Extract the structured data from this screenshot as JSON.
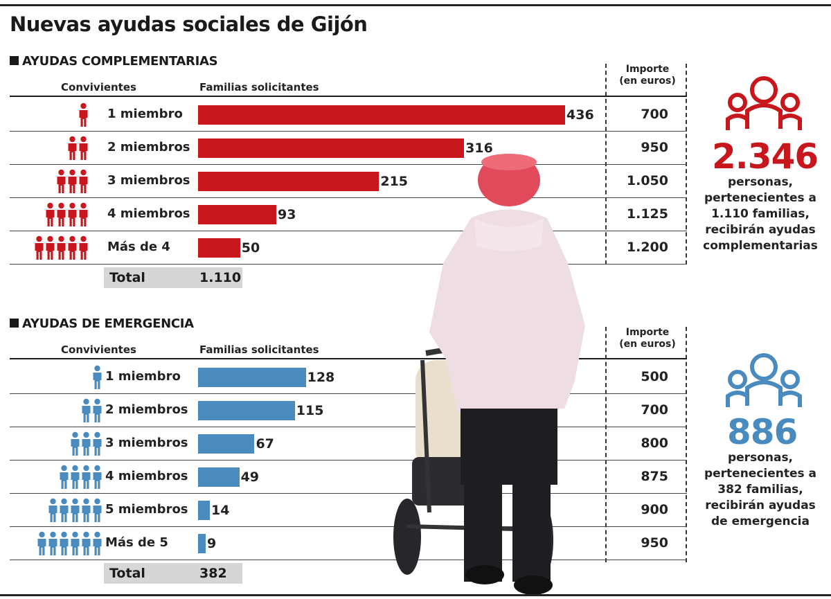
{
  "title": "Nuevas ayudas sociales de Gijón",
  "colors": {
    "red": "#c8161d",
    "blue": "#4a8bbf"
  },
  "chart_data": [
    {
      "type": "bar",
      "title": "AYUDAS COMPLEMENTARIAS",
      "xlabel": "Convivientes",
      "ylabel": "Familias solicitantes",
      "amount_label": "Importe (en euros)",
      "categories": [
        "1 miembro",
        "2 miembros",
        "3 miembros",
        "4 miembros",
        "Más de 4"
      ],
      "icon_counts": [
        1,
        2,
        3,
        4,
        5
      ],
      "values": [
        436,
        316,
        215,
        93,
        50
      ],
      "amounts": [
        "700",
        "950",
        "1.050",
        "1.125",
        "1.200"
      ],
      "total_label": "Total",
      "total": "1.110",
      "xlim": [
        0,
        436
      ]
    },
    {
      "type": "bar",
      "title": "AYUDAS DE EMERGENCIA",
      "xlabel": "Convivientes",
      "ylabel": "Familias solicitantes",
      "amount_label": "Importe (en euros)",
      "categories": [
        "1 miembro",
        "2 miembros",
        "3 miembros",
        "4 miembros",
        "5 miembros",
        "Más de 5"
      ],
      "icon_counts": [
        1,
        2,
        3,
        4,
        5,
        6
      ],
      "values": [
        128,
        115,
        67,
        49,
        14,
        9
      ],
      "amounts": [
        "500",
        "700",
        "800",
        "875",
        "900",
        "950"
      ],
      "total_label": "Total",
      "total": "382",
      "xlim": [
        0,
        436
      ]
    }
  ],
  "summary_red": {
    "number": "2.346",
    "lines": [
      "personas,",
      "pertenecientes a",
      "1.110 familias,",
      "recibirán ayudas",
      "complementarias"
    ]
  },
  "summary_blue": {
    "number": "886",
    "lines": [
      "personas,",
      "pertenecientes a",
      "382 familias,",
      "recibirán ayudas",
      "de emergencia"
    ]
  },
  "labels": {
    "convivientes": "Convivientes",
    "familias": "Familias solicitantes",
    "importe_1": "Importe",
    "importe_2": "(en euros)"
  }
}
